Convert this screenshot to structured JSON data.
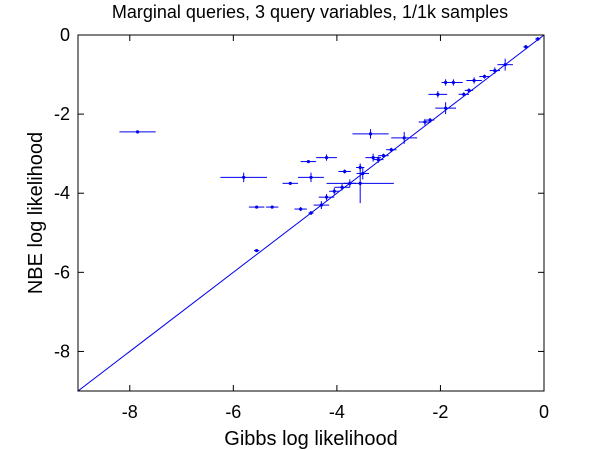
{
  "chart_data": {
    "type": "scatter",
    "title": "Marginal queries, 3 query variables, 1/1k samples",
    "xlabel": "Gibbs log likelihood",
    "ylabel": "NBE log likelihood",
    "xlim": [
      -9,
      0
    ],
    "ylim": [
      -9,
      0
    ],
    "xticks": [
      -8,
      -6,
      -4,
      -2,
      0
    ],
    "yticks": [
      -8,
      -6,
      -4,
      -2,
      0
    ],
    "grid": false,
    "legend": "none",
    "reference_line": {
      "from": [
        -9,
        -9
      ],
      "to": [
        0,
        0
      ]
    },
    "series": [
      {
        "color": "#0000ee",
        "points": [
          {
            "x": -7.85,
            "y": -2.45,
            "xerr": 0.35,
            "yerr": 0.03
          },
          {
            "x": -5.8,
            "y": -3.6,
            "xerr": 0.45,
            "yerr": 0.12
          },
          {
            "x": -5.55,
            "y": -4.35,
            "xerr": 0.15,
            "yerr": 0.03
          },
          {
            "x": -5.25,
            "y": -4.35,
            "xerr": 0.12,
            "yerr": 0.03
          },
          {
            "x": -5.55,
            "y": -5.45,
            "xerr": 0.05,
            "yerr": 0.03
          },
          {
            "x": -4.9,
            "y": -3.75,
            "xerr": 0.15,
            "yerr": 0.03
          },
          {
            "x": -4.5,
            "y": -3.6,
            "xerr": 0.25,
            "yerr": 0.12
          },
          {
            "x": -4.7,
            "y": -4.4,
            "xerr": 0.12,
            "yerr": 0.05
          },
          {
            "x": -4.5,
            "y": -4.5,
            "xerr": 0.05,
            "yerr": 0.05
          },
          {
            "x": -4.2,
            "y": -3.1,
            "xerr": 0.2,
            "yerr": 0.08
          },
          {
            "x": -4.55,
            "y": -3.2,
            "xerr": 0.15,
            "yerr": 0.03
          },
          {
            "x": -3.35,
            "y": -2.5,
            "xerr": 0.35,
            "yerr": 0.12
          },
          {
            "x": -4.3,
            "y": -4.3,
            "xerr": 0.15,
            "yerr": 0.1
          },
          {
            "x": -4.2,
            "y": -4.1,
            "xerr": 0.15,
            "yerr": 0.08
          },
          {
            "x": -4.05,
            "y": -3.95,
            "xerr": 0.1,
            "yerr": 0.08
          },
          {
            "x": -3.9,
            "y": -3.85,
            "xerr": 0.15,
            "yerr": 0.08
          },
          {
            "x": -3.75,
            "y": -3.75,
            "xerr": 0.12,
            "yerr": 0.1
          },
          {
            "x": -3.55,
            "y": -3.75,
            "xerr": 0.65,
            "yerr": 0.5
          },
          {
            "x": -3.5,
            "y": -3.5,
            "xerr": 0.12,
            "yerr": 0.15
          },
          {
            "x": -3.55,
            "y": -3.35,
            "xerr": 0.08,
            "yerr": 0.08
          },
          {
            "x": -3.85,
            "y": -3.45,
            "xerr": 0.12,
            "yerr": 0.05
          },
          {
            "x": -3.3,
            "y": -3.1,
            "xerr": 0.15,
            "yerr": 0.1
          },
          {
            "x": -3.2,
            "y": -3.15,
            "xerr": 0.1,
            "yerr": 0.08
          },
          {
            "x": -3.1,
            "y": -3.05,
            "xerr": 0.1,
            "yerr": 0.05
          },
          {
            "x": -2.95,
            "y": -2.9,
            "xerr": 0.1,
            "yerr": 0.05
          },
          {
            "x": -2.7,
            "y": -2.6,
            "xerr": 0.25,
            "yerr": 0.15
          },
          {
            "x": -2.3,
            "y": -2.2,
            "xerr": 0.12,
            "yerr": 0.08
          },
          {
            "x": -2.2,
            "y": -2.15,
            "xerr": 0.08,
            "yerr": 0.05
          },
          {
            "x": -1.9,
            "y": -1.85,
            "xerr": 0.2,
            "yerr": 0.15
          },
          {
            "x": -2.05,
            "y": -1.5,
            "xerr": 0.18,
            "yerr": 0.08
          },
          {
            "x": -1.75,
            "y": -1.2,
            "xerr": 0.18,
            "yerr": 0.08
          },
          {
            "x": -1.9,
            "y": -1.2,
            "xerr": 0.08,
            "yerr": 0.08
          },
          {
            "x": -1.55,
            "y": -1.5,
            "xerr": 0.1,
            "yerr": 0.05
          },
          {
            "x": -1.45,
            "y": -1.4,
            "xerr": 0.08,
            "yerr": 0.05
          },
          {
            "x": -1.35,
            "y": -1.15,
            "xerr": 0.15,
            "yerr": 0.08
          },
          {
            "x": -1.15,
            "y": -1.05,
            "xerr": 0.1,
            "yerr": 0.05
          },
          {
            "x": -0.95,
            "y": -0.9,
            "xerr": 0.1,
            "yerr": 0.08
          },
          {
            "x": -0.75,
            "y": -0.75,
            "xerr": 0.15,
            "yerr": 0.15
          },
          {
            "x": -0.35,
            "y": -0.3,
            "xerr": 0.05,
            "yerr": 0.05
          },
          {
            "x": -0.12,
            "y": -0.1,
            "xerr": 0.05,
            "yerr": 0.05
          }
        ]
      }
    ]
  }
}
